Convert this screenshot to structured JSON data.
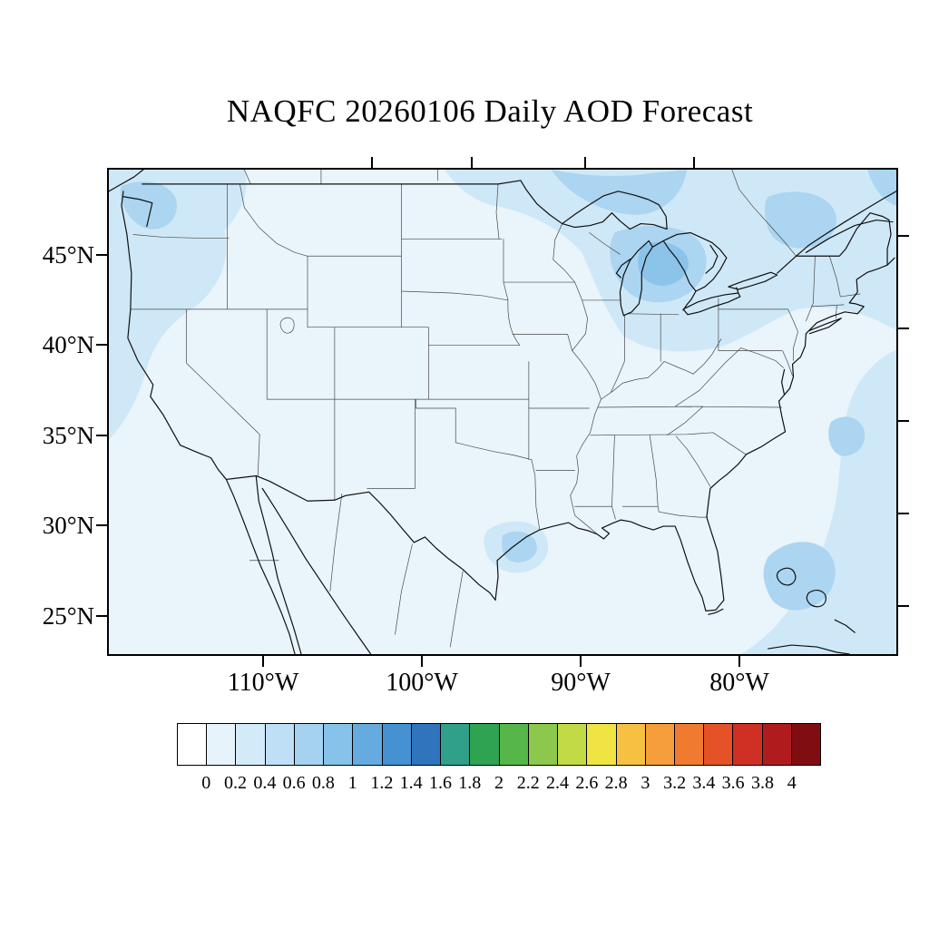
{
  "title": "NAQFC 20260106 Daily AOD Forecast",
  "axes": {
    "lat_labels": [
      "45°N",
      "40°N",
      "35°N",
      "30°N",
      "25°N"
    ],
    "lon_labels": [
      "110°W",
      "100°W",
      "90°W",
      "80°W"
    ]
  },
  "map": {
    "shade_colors": {
      "l1": "#e9f4fb",
      "l2": "#cfe8f7",
      "l3": "#abd5f0",
      "l4": "#8bc3e9"
    }
  },
  "colorbar": {
    "labels": [
      "0",
      "0.2",
      "0.4",
      "0.6",
      "0.8",
      "1",
      "1.2",
      "1.4",
      "1.6",
      "1.8",
      "2",
      "2.2",
      "2.4",
      "2.6",
      "2.8",
      "3",
      "3.2",
      "3.4",
      "3.6",
      "3.8",
      "4"
    ],
    "colors": [
      "#ffffff",
      "#e7f3fb",
      "#d3eaf8",
      "#bedff5",
      "#a4d2f0",
      "#86c2ea",
      "#66abdf",
      "#4691d1",
      "#2f74bd",
      "#30a08a",
      "#2fa352",
      "#57b649",
      "#8cc84b",
      "#c2da45",
      "#f0e442",
      "#f6c142",
      "#f59e3b",
      "#f07a30",
      "#e65227",
      "#d02f23",
      "#b01c1d",
      "#7f0d12"
    ]
  },
  "chart_data": {
    "type": "heatmap",
    "title": "NAQFC 20260106 Daily AOD Forecast",
    "x_tick_labels": [
      "110°W",
      "100°W",
      "90°W",
      "80°W"
    ],
    "y_tick_labels": [
      "45°N",
      "40°N",
      "35°N",
      "30°N",
      "25°N"
    ],
    "colorbar_levels": [
      0,
      0.2,
      0.4,
      0.6,
      0.8,
      1,
      1.2,
      1.4,
      1.6,
      1.8,
      2,
      2.2,
      2.4,
      2.6,
      2.8,
      3,
      3.2,
      3.4,
      3.6,
      3.8,
      4
    ],
    "value_field": "AOD",
    "legend_position": "bottom",
    "observed_regions": [
      {
        "region": "Pacific Northwest coast and offshore",
        "approx_aod": "0.2-0.6"
      },
      {
        "region": "Southern Canada, Upper Midwest and Great Lakes",
        "approx_aod": "0.2-0.8"
      },
      {
        "region": "St. Lawrence valley / Northeast",
        "approx_aod": "0.2-0.6"
      },
      {
        "region": "Western Atlantic off the Southeast coast",
        "approx_aod": "0.2-0.6"
      },
      {
        "region": "Texas Gulf coast spot",
        "approx_aod": "0.2-0.6"
      },
      {
        "region": "Remainder of CONUS interior",
        "approx_aod": "0.0-0.2"
      }
    ]
  }
}
